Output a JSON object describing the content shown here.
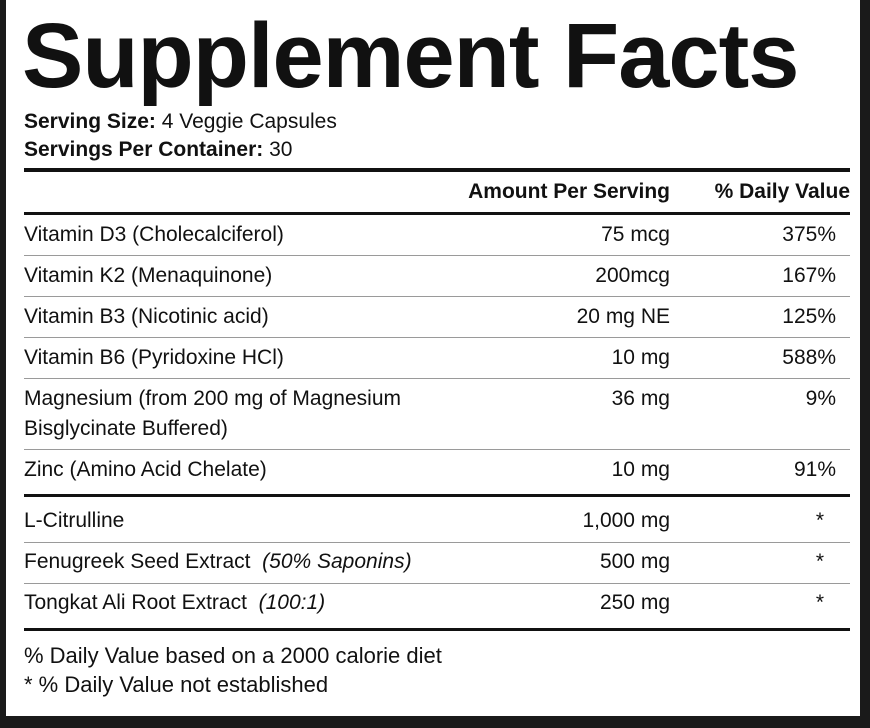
{
  "title": "Supplement Facts",
  "serving": {
    "size_label": "Serving Size:",
    "size_value": "4 Veggie Capsules",
    "per_container_label": "Servings Per Container:",
    "per_container_value": "30"
  },
  "header": {
    "amount": "Amount Per Serving",
    "daily_value": "% Daily Value"
  },
  "nutrients": [
    {
      "name": "Vitamin D3 (Cholecalciferol)",
      "amount": "75 mcg",
      "dv": "375%"
    },
    {
      "name": "Vitamin K2 (Menaquinone)",
      "amount": "200mcg",
      "dv": "167%"
    },
    {
      "name": "Vitamin B3 (Nicotinic acid)",
      "amount": "20 mg NE",
      "dv": "125%"
    },
    {
      "name": "Vitamin B6 (Pyridoxine HCl)",
      "amount": "10 mg",
      "dv": "588%"
    },
    {
      "name_line1": "Magnesium (from 200 mg of Magnesium",
      "name_line2": "Bisglycinate Buffered)",
      "amount": "36 mg",
      "dv": "9%"
    },
    {
      "name": "Zinc (Amino Acid Chelate)",
      "amount": "10 mg",
      "dv": "91%"
    }
  ],
  "others": [
    {
      "name": "L-Citrulline",
      "note": "",
      "amount": "1,000 mg",
      "dv": "*"
    },
    {
      "name": "Fenugreek Seed Extract",
      "note": "(50% Saponins)",
      "amount": "500 mg",
      "dv": "*"
    },
    {
      "name": "Tongkat Ali Root Extract",
      "note": "(100:1)",
      "amount": "250 mg",
      "dv": "*"
    }
  ],
  "footer": {
    "line1": "% Daily Value based on a 2000 calorie diet",
    "line2": "* % Daily Value not established"
  }
}
